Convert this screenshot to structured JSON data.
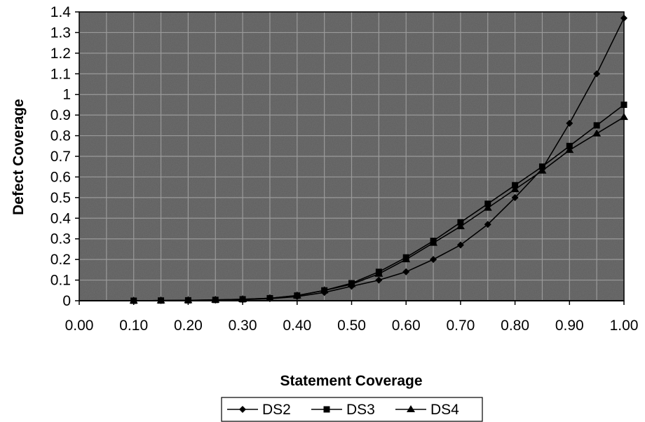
{
  "chart_data": {
    "type": "line",
    "xlabel": "Statement Coverage",
    "ylabel": "Defect Coverage",
    "xlim": [
      0.0,
      1.0
    ],
    "ylim": [
      0,
      1.4
    ],
    "x_ticks": [
      "0.00",
      "0.10",
      "0.20",
      "0.30",
      "0.40",
      "0.50",
      "0.60",
      "0.70",
      "0.80",
      "0.90",
      "1.00"
    ],
    "y_ticks": [
      "0",
      "0.1",
      "0.2",
      "0.3",
      "0.4",
      "0.5",
      "0.6",
      "0.7",
      "0.8",
      "0.9",
      "1",
      "1.1",
      "1.2",
      "1.3",
      "1.4"
    ],
    "grid": true,
    "legend_placement": "bottom",
    "x": [
      0.1,
      0.15,
      0.2,
      0.25,
      0.3,
      0.35,
      0.4,
      0.45,
      0.5,
      0.55,
      0.6,
      0.65,
      0.7,
      0.75,
      0.8,
      0.85,
      0.9,
      0.95,
      1.0
    ],
    "series": [
      {
        "name": "DS2",
        "marker": "diamond",
        "values": [
          0.0,
          0.001,
          0.002,
          0.003,
          0.005,
          0.01,
          0.02,
          0.04,
          0.07,
          0.1,
          0.14,
          0.2,
          0.27,
          0.37,
          0.5,
          0.64,
          0.86,
          1.1,
          1.37
        ]
      },
      {
        "name": "DS3",
        "marker": "square",
        "values": [
          0.0,
          0.001,
          0.002,
          0.004,
          0.007,
          0.012,
          0.025,
          0.05,
          0.085,
          0.14,
          0.21,
          0.29,
          0.38,
          0.47,
          0.56,
          0.65,
          0.75,
          0.85,
          0.95
        ]
      },
      {
        "name": "DS4",
        "marker": "triangle",
        "values": [
          0.0,
          0.001,
          0.002,
          0.004,
          0.007,
          0.012,
          0.025,
          0.05,
          0.08,
          0.13,
          0.2,
          0.28,
          0.36,
          0.45,
          0.54,
          0.63,
          0.73,
          0.81,
          0.89
        ]
      }
    ],
    "colors": {
      "plot_background": "#5a5a5a",
      "grid": "#9a9a9a",
      "line": "#000000",
      "page": "#ffffff"
    }
  }
}
